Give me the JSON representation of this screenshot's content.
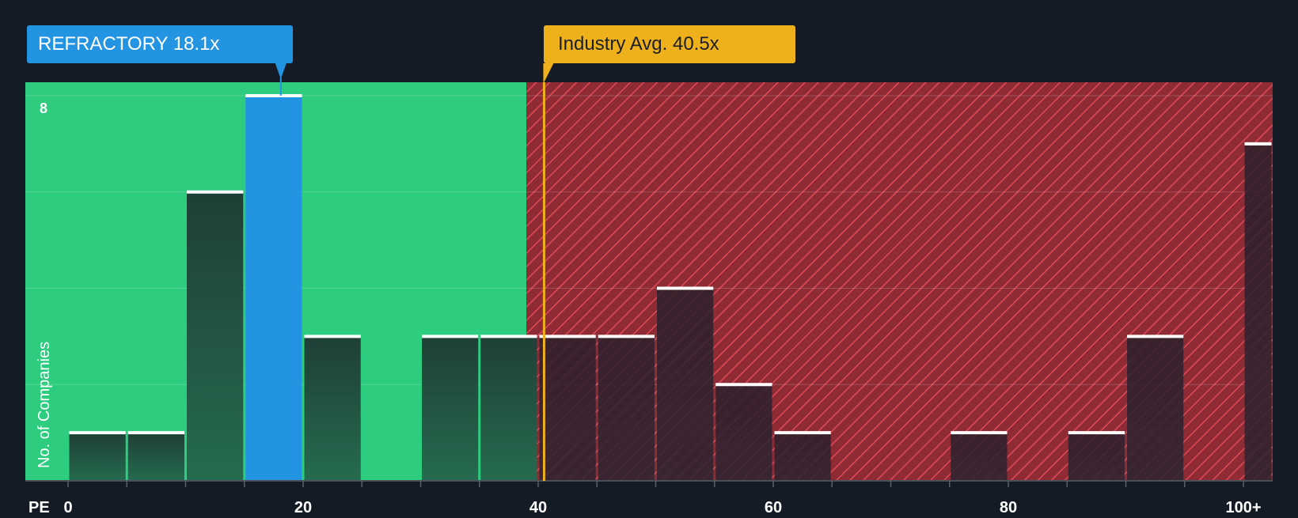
{
  "company_label": "REFRACTORY 18.1x",
  "industry_label": "Industry Avg. 40.5x",
  "colors": {
    "background": "#151b24",
    "fair_zone": "#2ecc7f",
    "over_zone": "#8e2b35",
    "hatch": "#e04b55",
    "company": "#2394e1",
    "industry": "#eeb11b",
    "bar_dark": "#1f4a3c",
    "bar_cap": "#ffffff"
  },
  "chart_data": {
    "type": "bar",
    "xlabel": "PE",
    "ylabel": "No. of Companies",
    "x_ticks": [
      "0",
      "20",
      "40",
      "60",
      "80",
      "100+"
    ],
    "y_ticks": [
      "8"
    ],
    "ylim": [
      0,
      8
    ],
    "xlim": [
      0,
      102
    ],
    "grid": true,
    "company_pe": 18.1,
    "industry_avg_pe": 40.5,
    "fair_zone_upper_pe": 39,
    "bins": [
      {
        "start": 0,
        "end": 5,
        "count": 1
      },
      {
        "start": 5,
        "end": 10,
        "count": 1
      },
      {
        "start": 10,
        "end": 15,
        "count": 6
      },
      {
        "start": 15,
        "end": 20,
        "count": 8,
        "highlight": true
      },
      {
        "start": 20,
        "end": 25,
        "count": 3
      },
      {
        "start": 25,
        "end": 30,
        "count": 0
      },
      {
        "start": 30,
        "end": 35,
        "count": 3
      },
      {
        "start": 35,
        "end": 40,
        "count": 3
      },
      {
        "start": 40,
        "end": 45,
        "count": 3
      },
      {
        "start": 45,
        "end": 50,
        "count": 3
      },
      {
        "start": 50,
        "end": 55,
        "count": 4
      },
      {
        "start": 55,
        "end": 60,
        "count": 2
      },
      {
        "start": 60,
        "end": 65,
        "count": 1
      },
      {
        "start": 65,
        "end": 70,
        "count": 0
      },
      {
        "start": 70,
        "end": 75,
        "count": 0
      },
      {
        "start": 75,
        "end": 80,
        "count": 1
      },
      {
        "start": 80,
        "end": 85,
        "count": 0
      },
      {
        "start": 85,
        "end": 90,
        "count": 1
      },
      {
        "start": 90,
        "end": 95,
        "count": 3
      },
      {
        "start": 95,
        "end": 100,
        "count": 0
      },
      {
        "start": 100,
        "end": 102.5,
        "count": 7
      }
    ]
  }
}
